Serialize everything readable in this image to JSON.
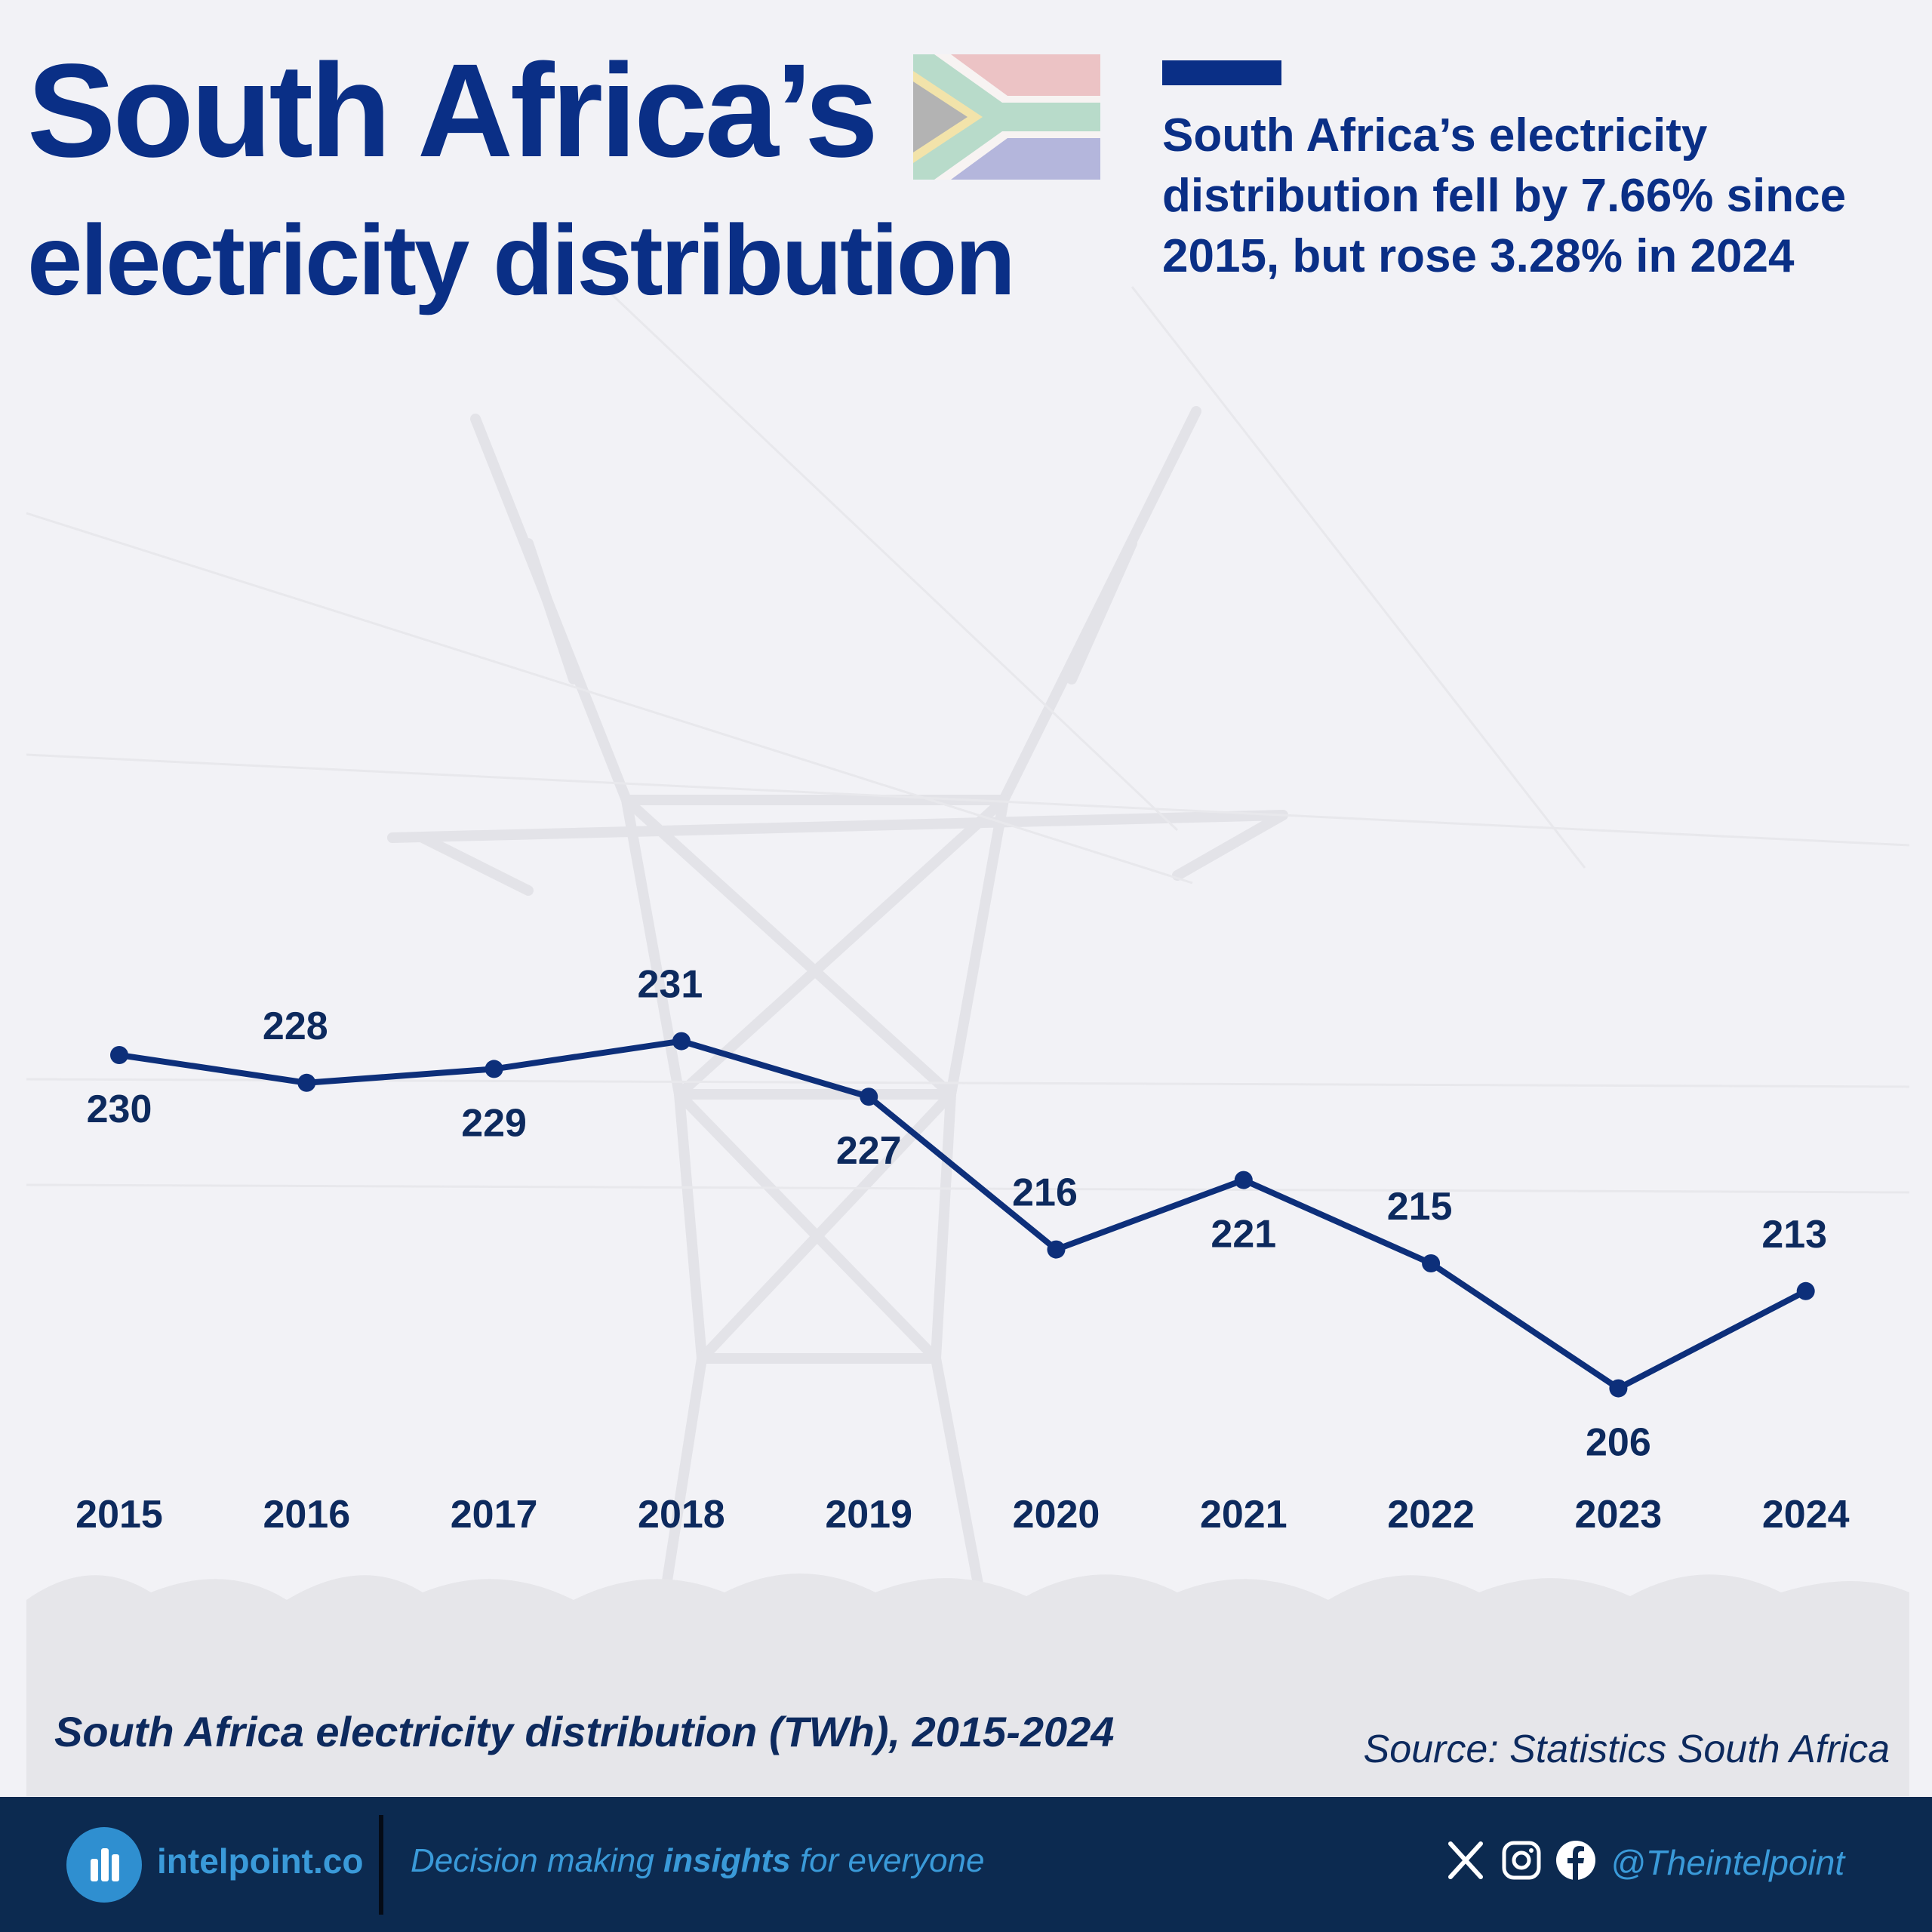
{
  "header": {
    "title_line1": "South Africa’s",
    "title_line2": "electricity distribution",
    "subtitle": "South Africa’s electricity distribution fell by 7.66% since 2015, but rose 3.28% in 2024"
  },
  "chart_data": {
    "type": "line",
    "x": [
      "2015",
      "2016",
      "2017",
      "2018",
      "2019",
      "2020",
      "2021",
      "2022",
      "2023",
      "2024"
    ],
    "series": [
      {
        "values": [
          230,
          228,
          229,
          231,
          227,
          216,
          221,
          215,
          206,
          213
        ]
      }
    ],
    "label_above": [
      false,
      true,
      false,
      true,
      false,
      true,
      false,
      true,
      false,
      true
    ],
    "ylim": [
      170,
      250
    ],
    "title": "South Africa electricity distribution (TWh), 2015-2024",
    "xlabel": "",
    "ylabel": "",
    "grid": false,
    "line_color": "#0d2f7a"
  },
  "caption": "South Africa electricity distribution (TWh), 2015-2024",
  "source": "Source: Statistics South Africa",
  "footer": {
    "brand": "intelpoint.co",
    "tagline_pre": "Decision making ",
    "tagline_bold": "insights",
    "tagline_post": " for everyone",
    "handle": "@Theintelpoint",
    "icons": [
      "x-icon",
      "instagram-icon",
      "facebook-icon"
    ]
  },
  "colors": {
    "brand_navy": "#0a2f86",
    "footer_bg": "#0c2a50",
    "accent_blue": "#3a9ad9"
  }
}
